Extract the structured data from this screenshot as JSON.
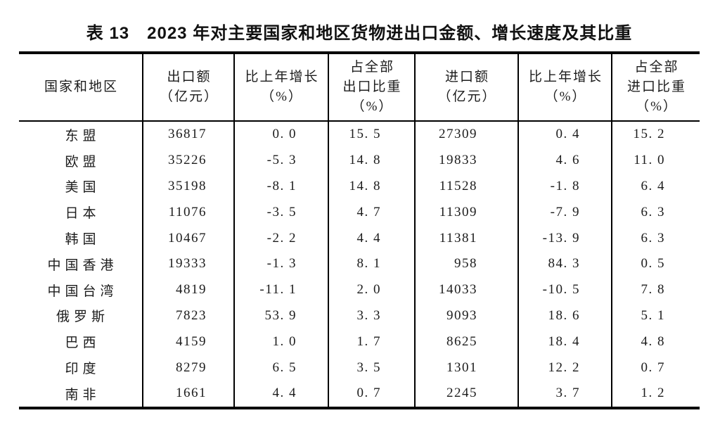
{
  "page": {
    "background": "#ffffff",
    "text_color": "#1c1c1c",
    "border_color": "#000000"
  },
  "table": {
    "title": "表 13　2023 年对主要国家和地区货物进出口金额、增长速度及其比重",
    "header": {
      "columns": [
        {
          "lines": [
            "国家和地区"
          ]
        },
        {
          "lines": [
            "出口额",
            "（亿元）"
          ]
        },
        {
          "lines": [
            "比上年增长",
            "（%）"
          ]
        },
        {
          "lines": [
            "占全部",
            "出口比重",
            "（%）"
          ]
        },
        {
          "lines": [
            "进口额",
            "（亿元）"
          ]
        },
        {
          "lines": [
            "比上年增长",
            "（%）"
          ]
        },
        {
          "lines": [
            "占全部",
            "进口比重",
            "（%）"
          ]
        }
      ]
    },
    "rows": [
      {
        "cells": [
          "东盟",
          "36817",
          "0. 0",
          "15. 5",
          "27309",
          "0. 4",
          "15. 2"
        ]
      },
      {
        "cells": [
          "欧盟",
          "35226",
          "-5. 3",
          "14. 8",
          "19833",
          "4. 6",
          "11. 0"
        ]
      },
      {
        "cells": [
          "美国",
          "35198",
          "-8. 1",
          "14. 8",
          "11528",
          "-1. 8",
          "6. 4"
        ]
      },
      {
        "cells": [
          "日本",
          "11076",
          "-3. 5",
          "4. 7",
          "11309",
          "-7. 9",
          "6. 3"
        ]
      },
      {
        "cells": [
          "韩国",
          "10467",
          "-2. 2",
          "4. 4",
          "11381",
          "-13. 9",
          "6. 3"
        ]
      },
      {
        "cells": [
          "中国香港",
          "19333",
          "-1. 3",
          "8. 1",
          "958",
          "84. 3",
          "0. 5"
        ]
      },
      {
        "cells": [
          "中国台湾",
          "4819",
          "-11. 1",
          "2. 0",
          "14033",
          "-10. 5",
          "7. 8"
        ]
      },
      {
        "cells": [
          "俄罗斯",
          "7823",
          "53. 9",
          "3. 3",
          "9093",
          "18. 6",
          "5. 1"
        ]
      },
      {
        "cells": [
          "巴西",
          "4159",
          "1. 0",
          "1. 7",
          "8625",
          "18. 4",
          "4. 8"
        ]
      },
      {
        "cells": [
          "印度",
          "8279",
          "6. 5",
          "3. 5",
          "1301",
          "12. 2",
          "0. 7"
        ]
      },
      {
        "cells": [
          "南非",
          "1661",
          "4. 4",
          "0. 7",
          "2245",
          "3. 7",
          "1. 2"
        ]
      }
    ]
  }
}
